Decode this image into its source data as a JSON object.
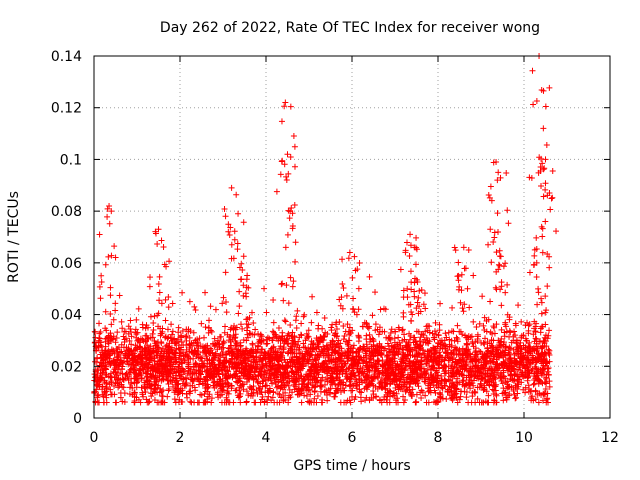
{
  "chart_data": {
    "type": "scatter",
    "title": "Day 262 of 2022, Rate Of TEC Index for receiver wong",
    "xlabel": "GPS time / hours",
    "ylabel": "ROTI / TECUs",
    "xlim": [
      0,
      12
    ],
    "ylim": [
      0,
      0.14
    ],
    "xticks": [
      "0",
      "2",
      "4",
      "6",
      "8",
      "10",
      "12"
    ],
    "yticks": [
      "0",
      "0.02",
      "0.04",
      "0.06",
      "0.08",
      "0.1",
      "0.12",
      "0.14"
    ],
    "grid": true,
    "marker": "+",
    "color": "#ff0000",
    "series": [
      {
        "name": "ROTI",
        "x_range_hours": [
          0,
          10.6
        ],
        "baseline_tecu": 0.02,
        "band_min_tecu": 0.006,
        "band_max_tecu": 0.04,
        "peaks": [
          {
            "x": 0.35,
            "y": 0.082
          },
          {
            "x": 1.5,
            "y": 0.073
          },
          {
            "x": 3.2,
            "y": 0.089
          },
          {
            "x": 3.35,
            "y": 0.079
          },
          {
            "x": 4.45,
            "y": 0.122
          },
          {
            "x": 4.5,
            "y": 0.102
          },
          {
            "x": 5.95,
            "y": 0.064
          },
          {
            "x": 7.35,
            "y": 0.071
          },
          {
            "x": 7.45,
            "y": 0.066
          },
          {
            "x": 8.6,
            "y": 0.066
          },
          {
            "x": 9.35,
            "y": 0.099
          },
          {
            "x": 9.4,
            "y": 0.095
          },
          {
            "x": 10.35,
            "y": 0.14
          },
          {
            "x": 10.45,
            "y": 0.112
          },
          {
            "x": 10.5,
            "y": 0.1
          }
        ]
      }
    ]
  }
}
